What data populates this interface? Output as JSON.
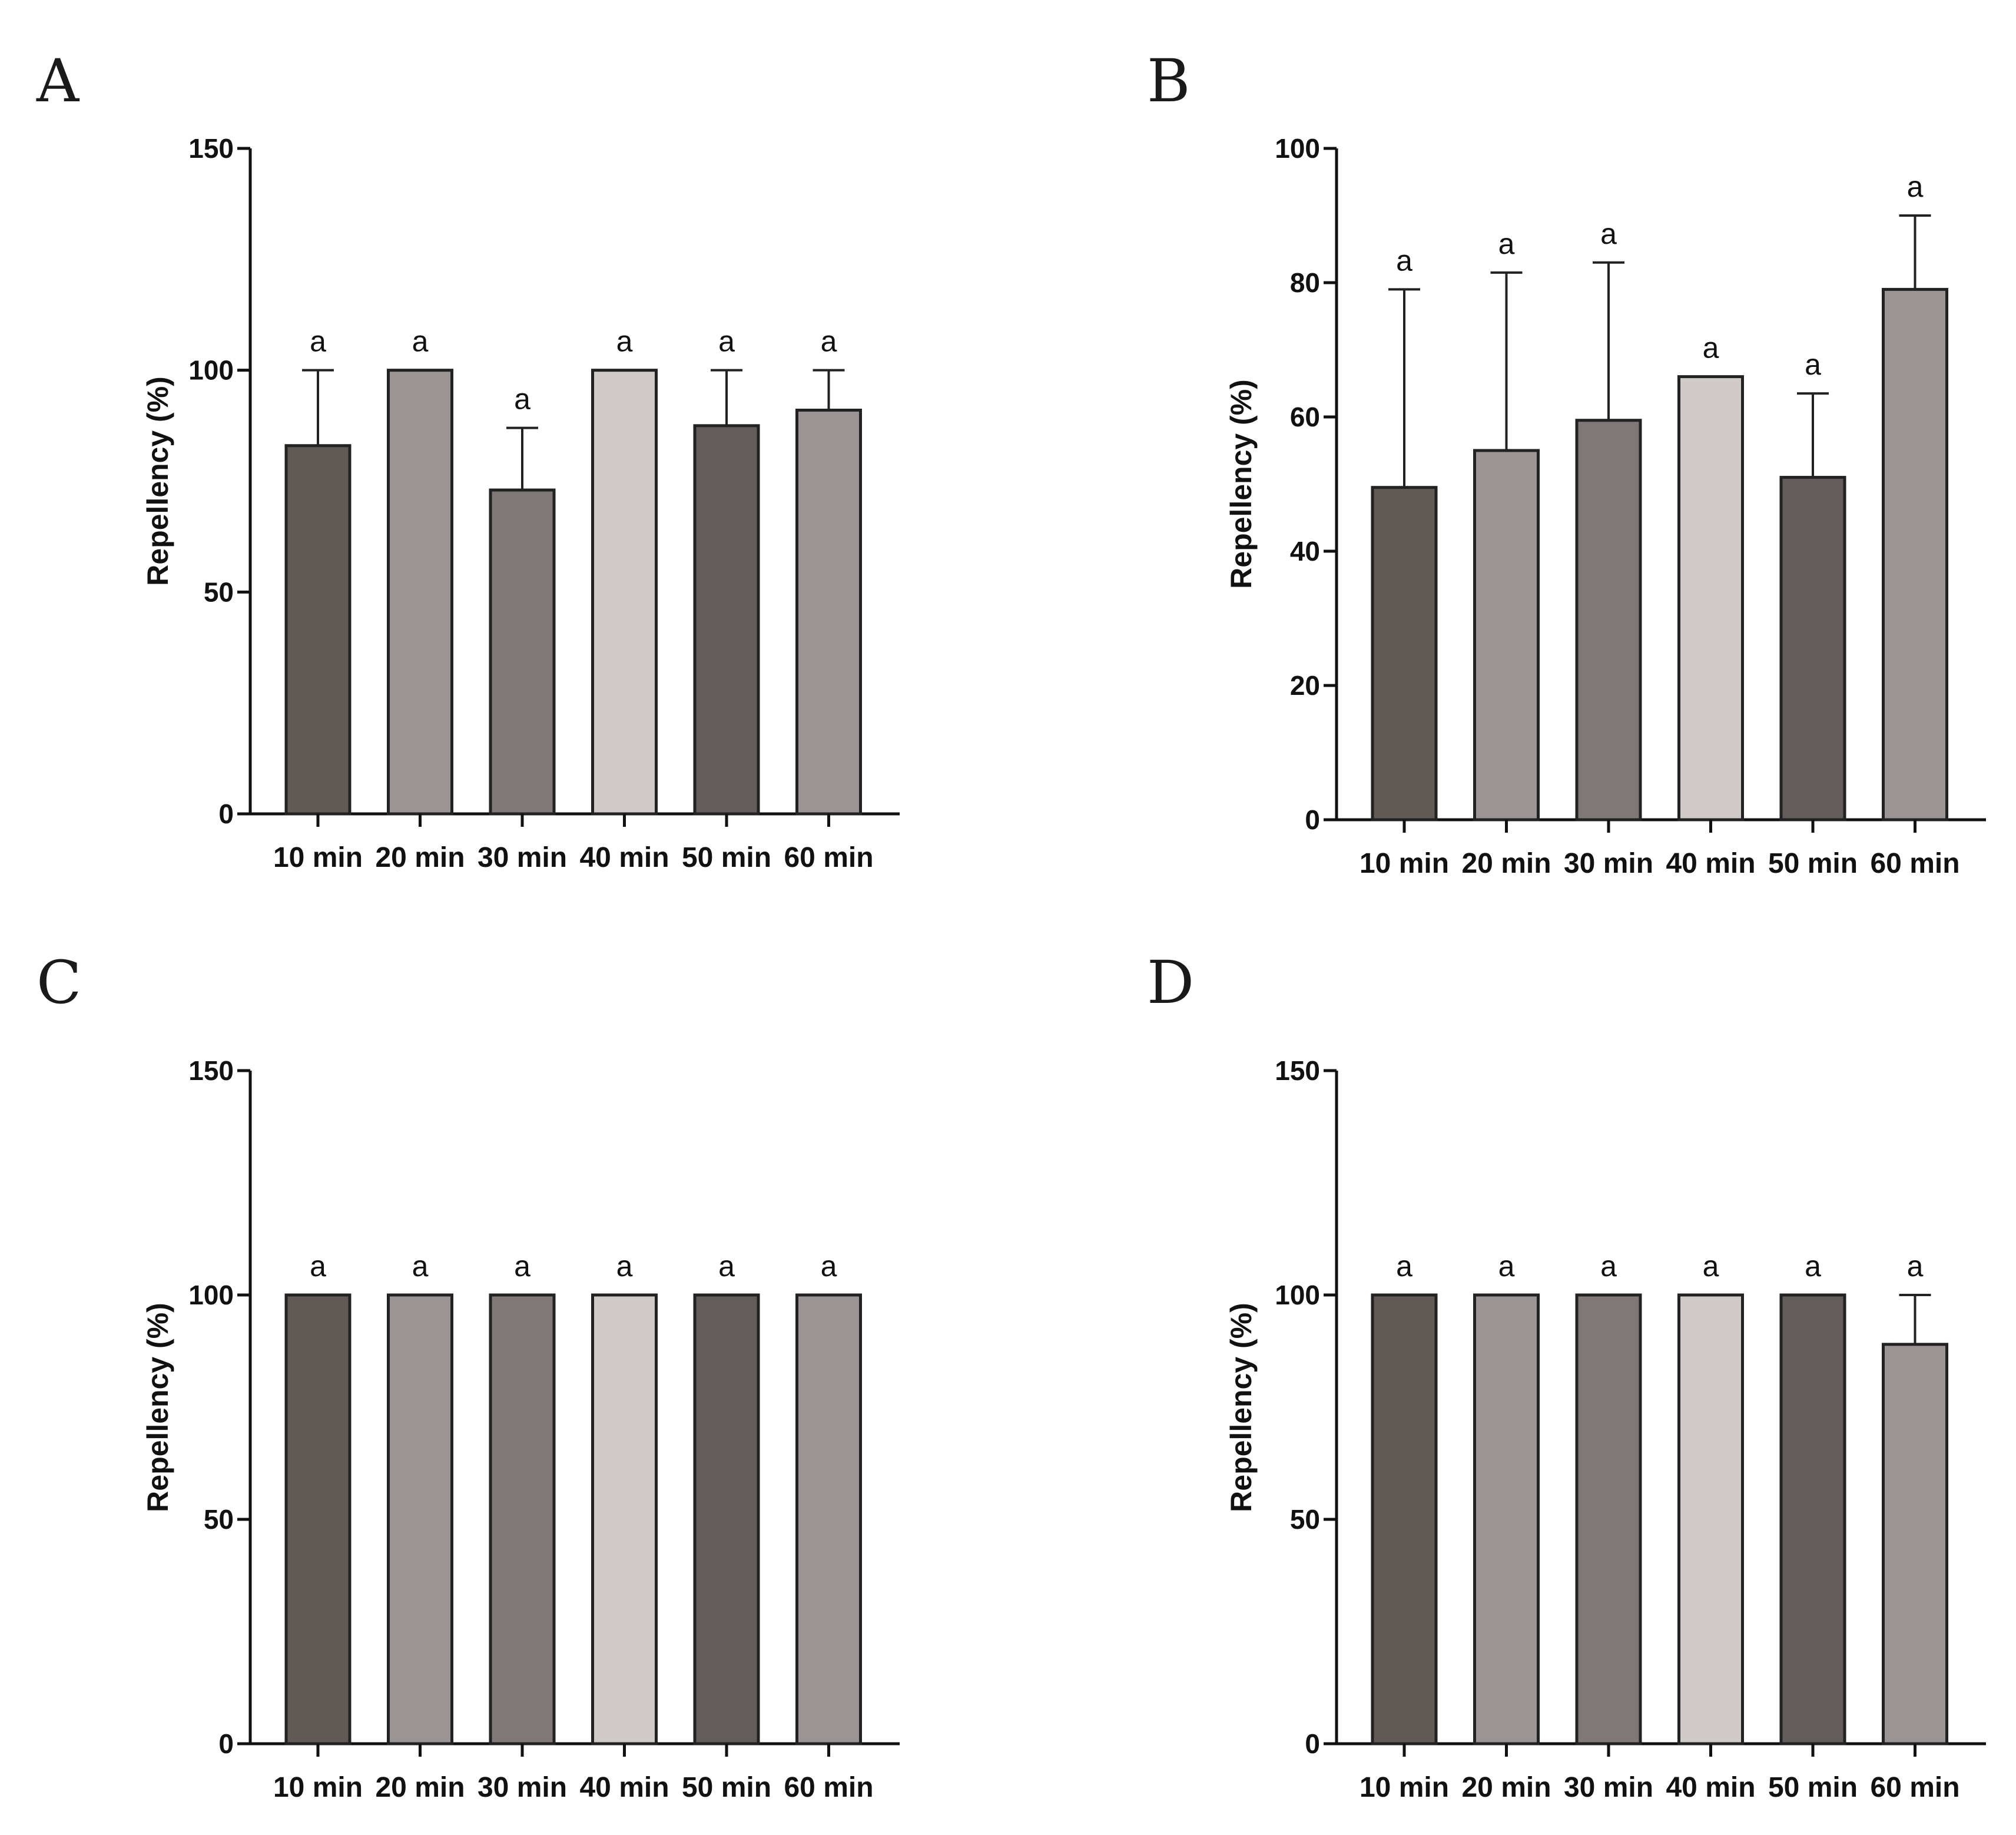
{
  "colors": {
    "bar_fills": [
      "#625a56",
      "#9b9494",
      "#807877",
      "#d0cbc8",
      "#625c5a",
      "#9b9494"
    ],
    "axis": "#111111"
  },
  "chart_data": [
    {
      "panel_label": "A",
      "type": "bar",
      "categories": [
        "10 min",
        "20 min",
        "30 min",
        "40 min",
        "50 min",
        "60 min"
      ],
      "values": [
        83,
        100,
        73,
        100,
        87.5,
        91
      ],
      "error_upper": [
        100,
        100,
        87,
        100,
        100,
        100
      ],
      "significance": [
        "a",
        "a",
        "a",
        "a",
        "a",
        "a"
      ],
      "ylabel": "Repellency (%)",
      "ylim": [
        0,
        150
      ],
      "yticks": [
        0,
        50,
        100,
        150
      ],
      "grid": false
    },
    {
      "panel_label": "B",
      "type": "bar",
      "categories": [
        "10 min",
        "20 min",
        "30 min",
        "40 min",
        "50 min",
        "60 min"
      ],
      "values": [
        49.5,
        55,
        59.5,
        66,
        51,
        79
      ],
      "error_upper": [
        79,
        81.5,
        83,
        66,
        63.5,
        90
      ],
      "significance": [
        "a",
        "a",
        "a",
        "a",
        "a",
        "a"
      ],
      "ylabel": "Repellency (%)",
      "ylim": [
        0,
        100
      ],
      "yticks": [
        0,
        20,
        40,
        60,
        80,
        100
      ],
      "grid": false
    },
    {
      "panel_label": "C",
      "type": "bar",
      "categories": [
        "10 min",
        "20 min",
        "30 min",
        "40 min",
        "50 min",
        "60 min"
      ],
      "values": [
        100,
        100,
        100,
        100,
        100,
        100
      ],
      "error_upper": [
        100,
        100,
        100,
        100,
        100,
        100
      ],
      "significance": [
        "a",
        "a",
        "a",
        "a",
        "a",
        "a"
      ],
      "ylabel": "Repellency (%)",
      "ylim": [
        0,
        150
      ],
      "yticks": [
        0,
        50,
        100,
        150
      ],
      "grid": false
    },
    {
      "panel_label": "D",
      "type": "bar",
      "categories": [
        "10 min",
        "20 min",
        "30 min",
        "40 min",
        "50 min",
        "60 min"
      ],
      "values": [
        100,
        100,
        100,
        100,
        100,
        89
      ],
      "error_upper": [
        100,
        100,
        100,
        100,
        100,
        100
      ],
      "significance": [
        "a",
        "a",
        "a",
        "a",
        "a",
        "a"
      ],
      "ylabel": "Repellency (%)",
      "ylim": [
        0,
        150
      ],
      "yticks": [
        0,
        50,
        100,
        150
      ],
      "grid": false
    }
  ]
}
